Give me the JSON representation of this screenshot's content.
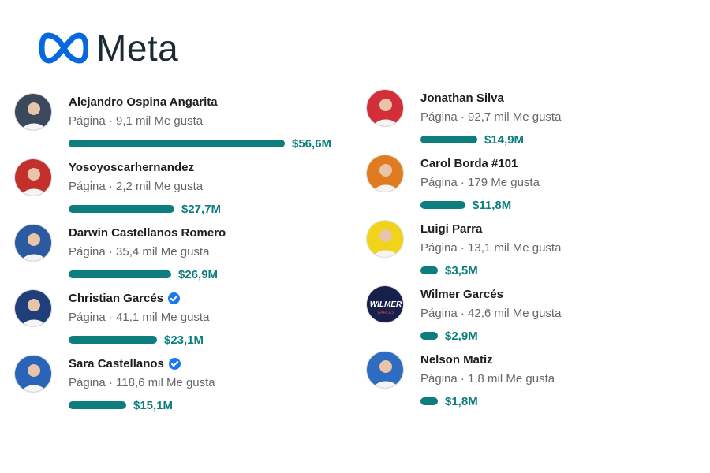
{
  "brand": {
    "name": "Meta",
    "logo_icon": "meta-infinity-icon",
    "color": "#0668e1"
  },
  "colors": {
    "bar": "#0d7d7d",
    "verified": "#1877f2"
  },
  "chart_data": {
    "type": "bar",
    "orientation": "horizontal",
    "unit": "$M",
    "categories": [
      "Alejandro Ospina Angarita",
      "Yosoyoscarhernandez",
      "Darwin Castellanos Romero",
      "Christian Garcés",
      "Sara Castellanos",
      "Jonathan Silva",
      "Carol Borda #101",
      "Luigi Parra",
      "Wilmer Garcés",
      "Nelson Matiz"
    ],
    "values": [
      56.6,
      27.7,
      26.9,
      23.1,
      15.1,
      14.9,
      11.8,
      3.5,
      2.9,
      1.8
    ]
  },
  "entries": [
    {
      "name": "Alejandro Ospina Angarita",
      "meta": "Página · 9,1 mil Me gusta",
      "amount": "$56,6M",
      "value": 56.6,
      "verified": false,
      "avatar_icon": "profile-photo-icon",
      "avatar_bg": "#3a4a5c"
    },
    {
      "name": "Yosoyoscarhernandez",
      "meta": "Página · 2,2 mil Me gusta",
      "amount": "$27,7M",
      "value": 27.7,
      "verified": false,
      "avatar_icon": "profile-photo-icon",
      "avatar_bg": "#c4302b"
    },
    {
      "name": "Darwin Castellanos Romero",
      "meta": "Página · 35,4 mil Me gusta",
      "amount": "$26,9M",
      "value": 26.9,
      "verified": false,
      "avatar_icon": "profile-photo-icon",
      "avatar_bg": "#2c5aa0"
    },
    {
      "name": "Christian Garcés",
      "meta": "Página · 41,1 mil Me gusta",
      "amount": "$23,1M",
      "value": 23.1,
      "verified": true,
      "avatar_icon": "profile-photo-icon",
      "avatar_bg": "#1f3f7a"
    },
    {
      "name": "Sara Castellanos",
      "meta": "Página · 118,6 mil Me gusta",
      "amount": "$15,1M",
      "value": 15.1,
      "verified": true,
      "avatar_icon": "profile-photo-icon",
      "avatar_bg": "#2a64b8"
    },
    {
      "name": "Jonathan Silva",
      "meta": "Página · 92,7 mil Me gusta",
      "amount": "$14,9M",
      "value": 14.9,
      "verified": false,
      "avatar_icon": "profile-photo-icon",
      "avatar_bg": "#d32f3a"
    },
    {
      "name": "Carol Borda #101",
      "meta": "Página · 179 Me gusta",
      "amount": "$11,8M",
      "value": 11.8,
      "verified": false,
      "avatar_icon": "profile-photo-icon",
      "avatar_bg": "#e07b1f"
    },
    {
      "name": "Luigi Parra",
      "meta": "Página · 13,1 mil Me gusta",
      "amount": "$3,5M",
      "value": 3.5,
      "verified": false,
      "avatar_icon": "profile-photo-icon",
      "avatar_bg": "#f2d31b"
    },
    {
      "name": "Wilmer Garcés",
      "meta": "Página · 42,6 mil Me gusta",
      "amount": "$2,9M",
      "value": 2.9,
      "verified": false,
      "avatar_icon": "wilmer-logo-icon",
      "avatar_bg": "#16204a",
      "avatar_text": "WILMER",
      "avatar_subtext": "GARCÉS"
    },
    {
      "name": "Nelson Matiz",
      "meta": "Página · 1,8 mil Me gusta",
      "amount": "$1,8M",
      "value": 1.8,
      "verified": false,
      "avatar_icon": "profile-photo-icon",
      "avatar_bg": "#2d6cc0"
    }
  ]
}
